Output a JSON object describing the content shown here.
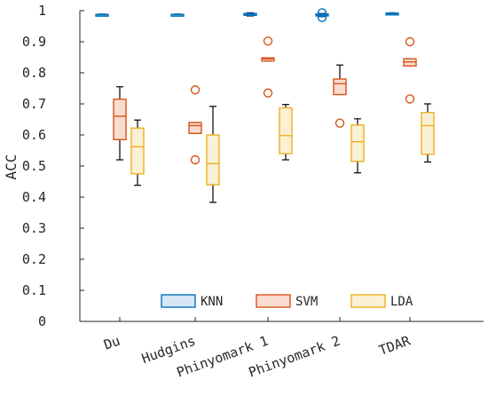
{
  "chart_data": {
    "type": "box",
    "ylabel": "ACC",
    "ylim": [
      0,
      1
    ],
    "yticks": [
      0,
      0.1,
      0.2,
      0.3,
      0.4,
      0.5,
      0.6,
      0.7,
      0.8,
      0.9,
      1
    ],
    "ytick_labels": [
      "0",
      "0.1",
      "0.2",
      "0.3",
      "0.4",
      "0.5",
      "0.6",
      "0.7",
      "0.8",
      "0.9",
      "1"
    ],
    "categories": [
      "Du",
      "Hudgins",
      "Phinyomark 1",
      "Phinyomark 2",
      "TDAR"
    ],
    "legend_position": "bottom-center",
    "grid": false,
    "series": [
      {
        "name": "KNN",
        "edge_color": "#0072BD",
        "fill_color": "#d6e6f4",
        "boxes": [
          {
            "whisker_low": 0.985,
            "q1": 0.986,
            "median": 0.987,
            "q3": 0.988,
            "whisker_high": 0.989,
            "outliers": []
          },
          {
            "whisker_low": 0.985,
            "q1": 0.986,
            "median": 0.987,
            "q3": 0.988,
            "whisker_high": 0.989,
            "outliers": []
          },
          {
            "whisker_low": 0.983,
            "q1": 0.985,
            "median": 0.988,
            "q3": 0.991,
            "whisker_high": 0.993,
            "outliers": []
          },
          {
            "whisker_low": 0.981,
            "q1": 0.983,
            "median": 0.986,
            "q3": 0.989,
            "whisker_high": 0.991,
            "outliers": [
              0.978,
              0.993
            ]
          },
          {
            "whisker_low": 0.987,
            "q1": 0.988,
            "median": 0.99,
            "q3": 0.992,
            "whisker_high": 0.993,
            "outliers": []
          }
        ]
      },
      {
        "name": "SVM",
        "edge_color": "#D95319",
        "fill_color": "#f8dccf",
        "boxes": [
          {
            "whisker_low": 0.52,
            "q1": 0.585,
            "median": 0.66,
            "q3": 0.715,
            "whisker_high": 0.755,
            "outliers": []
          },
          {
            "whisker_low": 0.605,
            "q1": 0.605,
            "median": 0.63,
            "q3": 0.64,
            "whisker_high": 0.64,
            "outliers": [
              0.745,
              0.52
            ]
          },
          {
            "whisker_low": 0.838,
            "q1": 0.838,
            "median": 0.845,
            "q3": 0.848,
            "whisker_high": 0.848,
            "outliers": [
              0.902,
              0.735
            ]
          },
          {
            "whisker_low": 0.73,
            "q1": 0.73,
            "median": 0.765,
            "q3": 0.78,
            "whisker_high": 0.825,
            "outliers": [
              0.638
            ]
          },
          {
            "whisker_low": 0.822,
            "q1": 0.822,
            "median": 0.835,
            "q3": 0.845,
            "whisker_high": 0.845,
            "outliers": [
              0.9,
              0.716
            ]
          }
        ]
      },
      {
        "name": "LDA",
        "edge_color": "#EDB120",
        "fill_color": "#fbf0d4",
        "boxes": [
          {
            "whisker_low": 0.438,
            "q1": 0.475,
            "median": 0.562,
            "q3": 0.622,
            "whisker_high": 0.648,
            "outliers": []
          },
          {
            "whisker_low": 0.383,
            "q1": 0.44,
            "median": 0.508,
            "q3": 0.6,
            "whisker_high": 0.692,
            "outliers": []
          },
          {
            "whisker_low": 0.52,
            "q1": 0.54,
            "median": 0.598,
            "q3": 0.687,
            "whisker_high": 0.698,
            "outliers": []
          },
          {
            "whisker_low": 0.478,
            "q1": 0.515,
            "median": 0.578,
            "q3": 0.632,
            "whisker_high": 0.652,
            "outliers": []
          },
          {
            "whisker_low": 0.513,
            "q1": 0.538,
            "median": 0.63,
            "q3": 0.672,
            "whisker_high": 0.7,
            "outliers": []
          }
        ]
      }
    ]
  }
}
